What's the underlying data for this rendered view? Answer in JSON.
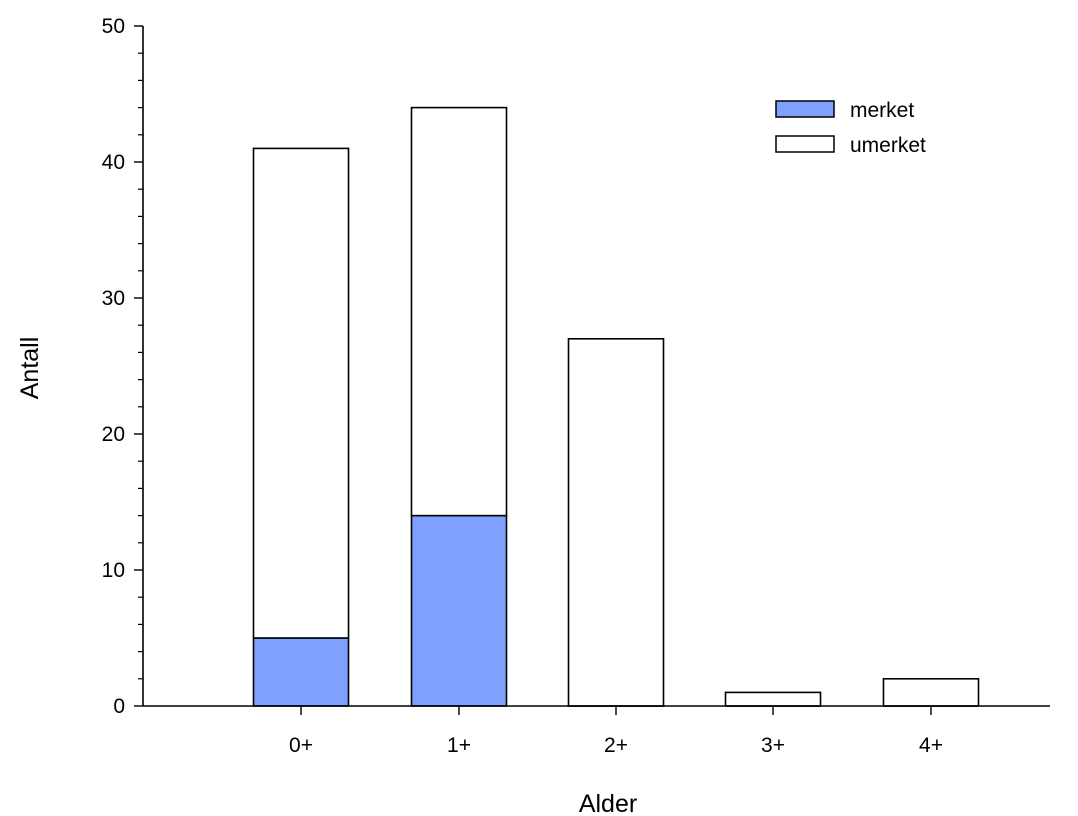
{
  "chart_data": {
    "type": "bar",
    "stacked": true,
    "title": "",
    "xlabel": "Alder",
    "ylabel": "Antall",
    "categories": [
      "0+",
      "1+",
      "2+",
      "3+",
      "4+"
    ],
    "series": [
      {
        "name": "merket",
        "values": [
          5,
          14,
          0,
          0,
          0
        ],
        "color": "#7fa0ff"
      },
      {
        "name": "umerket",
        "values": [
          36,
          30,
          27,
          1,
          2
        ],
        "color": "#ffffff"
      }
    ],
    "ylim": [
      0,
      50
    ],
    "yticks": [
      0,
      10,
      20,
      30,
      40,
      50
    ],
    "yticks_labels": [
      "0",
      "10",
      "20",
      "30",
      "40",
      "50"
    ],
    "minor_ticks_per_major": 5,
    "grid": false,
    "legend_position": "top-right"
  }
}
